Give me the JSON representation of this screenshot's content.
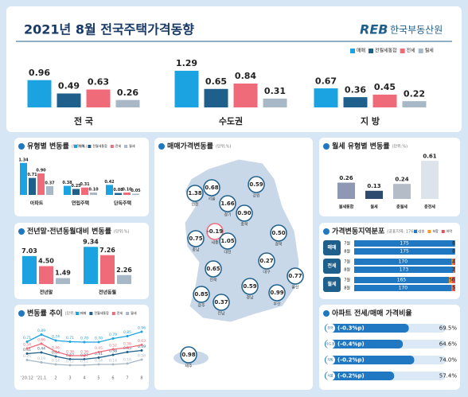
{
  "header": {
    "title": "2021년 8월 전국주택가격동향",
    "logo": "REB",
    "org": "한국부동산원"
  },
  "chart_data": [
    {
      "type": "bar",
      "ylim": [
        0,
        1.4
      ],
      "categories": [
        "전 국",
        "수도권",
        "지 방"
      ],
      "series": [
        {
          "name": "매매",
          "color": "#1aa3e0",
          "values": [
            0.96,
            1.29,
            0.67
          ],
          "value_labels": [
            "0.96",
            "1.29",
            "0.67"
          ]
        },
        {
          "name": "전월세통합",
          "color": "#1f5f8b",
          "values": [
            0.49,
            0.65,
            0.36
          ],
          "value_labels": [
            "0.49",
            "0.65",
            "0.36"
          ]
        },
        {
          "name": "전세",
          "color": "#f06b7a",
          "values": [
            0.63,
            0.84,
            0.45
          ],
          "value_labels": [
            "0.63",
            "0.84",
            "0.45"
          ]
        },
        {
          "name": "월세",
          "color": "#a9b8c6",
          "values": [
            0.26,
            0.31,
            0.22
          ],
          "value_labels": [
            "0.26",
            "0.31",
            "0.22"
          ]
        }
      ]
    },
    {
      "type": "bar",
      "title": "유형별 변동률",
      "unit": "(단위:%)",
      "ylim": [
        0,
        1.5
      ],
      "categories": [
        "아파트",
        "연립주택",
        "단독주택"
      ],
      "series": [
        {
          "name": "매매",
          "color": "#1aa3e0",
          "values": [
            1.34,
            0.38,
            0.42
          ],
          "value_labels": [
            "1.34",
            "0.38",
            "0.42"
          ]
        },
        {
          "name": "전월세통합",
          "color": "#1f5f8b",
          "values": [
            0.71,
            0.25,
            0.08
          ],
          "value_labels": [
            "0.71",
            "0.25",
            "0.08"
          ]
        },
        {
          "name": "전세",
          "color": "#f06b7a",
          "values": [
            0.9,
            0.31,
            0.1
          ],
          "value_labels": [
            "0.90",
            "0.31",
            "0.10"
          ]
        },
        {
          "name": "월세",
          "color": "#a9b8c6",
          "values": [
            0.37,
            0.1,
            0.05
          ],
          "value_labels": [
            "0.37",
            "0.10",
            "0.05"
          ]
        }
      ]
    },
    {
      "type": "bar",
      "title": "전년말·전년동월대비 변동률",
      "unit": "(단위:%)",
      "ylim": [
        0,
        10
      ],
      "categories": [
        "전년말",
        "전년동월"
      ],
      "series": [
        {
          "color": "#1aa3e0",
          "values": [
            7.03,
            9.34
          ],
          "value_labels": [
            "7.03",
            "9.34"
          ]
        },
        {
          "color": "#f06b7a",
          "values": [
            4.5,
            7.26
          ],
          "value_labels": [
            "4.50",
            "7.26"
          ]
        },
        {
          "color": "#a9b8c6",
          "values": [
            1.49,
            2.26
          ],
          "value_labels": [
            "1.49",
            "2.26"
          ]
        }
      ]
    },
    {
      "type": "line",
      "title": "변동률 추이",
      "unit": "(단위:%)",
      "ylim": [
        0,
        1.1
      ],
      "categories": [
        "'20.12",
        "'21.1",
        "2",
        "3",
        "4",
        "5",
        "6",
        "7",
        "8"
      ],
      "series": [
        {
          "name": "매매",
          "color": "#1aa3e0",
          "values": [
            0.71,
            0.89,
            0.74,
            0.71,
            0.7,
            0.7,
            0.79,
            0.85,
            0.96
          ],
          "value_labels": [
            "0.71",
            "0.89",
            "0.74",
            "0.71",
            "0.70",
            "0.70",
            "0.79",
            "0.85",
            "0.96"
          ]
        },
        {
          "name": "전월세통합",
          "color": "#1f5f8b",
          "values": [
            0.41,
            0.44,
            0.34,
            0.27,
            0.27,
            0.31,
            0.38,
            0.45,
            0.49
          ],
          "value_labels": [
            "0.41",
            "0.44",
            "0.34",
            "0.27",
            "0.27",
            "0.31",
            "0.38",
            "0.45",
            "0.49"
          ]
        },
        {
          "name": "전세",
          "color": "#f06b7a",
          "values": [
            0.54,
            0.66,
            0.46,
            0.36,
            0.36,
            0.45,
            0.52,
            0.56,
            0.63
          ],
          "value_labels": [
            "0.54",
            "0.66",
            "0.46",
            "0.36",
            "0.36",
            "0.45",
            "0.52",
            "0.56",
            "0.63"
          ]
        },
        {
          "name": "월세",
          "color": "#a9b8c6",
          "values": [
            0.25,
            0.19,
            0.14,
            0.12,
            0.12,
            0.14,
            0.14,
            0.16,
            0.26
          ],
          "value_labels": [
            "0.25",
            "0.19",
            "0.14",
            "0.12",
            "0.12",
            "0.14",
            "0.14",
            "0.16",
            "0.26"
          ]
        }
      ]
    },
    {
      "type": "map",
      "title": "매매가격변동률",
      "unit": "(단위:%)",
      "categories": [
        "인천",
        "서울",
        "경기",
        "강원",
        "충북",
        "세종",
        "충남",
        "대전",
        "경북",
        "전북",
        "대구",
        "울산",
        "광주",
        "경남",
        "부산",
        "전남",
        "제주"
      ],
      "values": [
        1.38,
        0.68,
        1.66,
        0.59,
        0.9,
        -0.19,
        0.75,
        1.05,
        0.5,
        0.65,
        0.27,
        0.77,
        0.85,
        0.59,
        0.99,
        0.37,
        0.98
      ],
      "value_labels": [
        "1.38",
        "0.68",
        "1.66",
        "0.59",
        "0.90",
        "-0.19",
        "0.75",
        "1.05",
        "0.50",
        "0.65",
        "0.27",
        "0.77",
        "0.85",
        "0.59",
        "0.99",
        "0.37",
        "0.98"
      ]
    },
    {
      "type": "bar",
      "title": "월세 유형별 변동률",
      "unit": "(단위:%)",
      "ylim": [
        0,
        0.7
      ],
      "categories": [
        "월세통합",
        "월세",
        "준월세",
        "준전세"
      ],
      "colors": [
        "#8e97b3",
        "#2c4b6e",
        "#b3bcc7",
        "#dde3ea"
      ],
      "series": [
        {
          "values": [
            0.26,
            0.13,
            0.24,
            0.61
          ],
          "value_labels": [
            "0.26",
            "0.13",
            "0.24",
            "0.61"
          ]
        }
      ]
    },
    {
      "type": "stacked-hbar",
      "title": "가격변동지역분포",
      "subtitle": "(공표지역: 176개)",
      "xlim": [
        0,
        176
      ],
      "groups": [
        "매매",
        "전세",
        "월세"
      ],
      "categories": [
        "7월",
        "8월",
        "7월",
        "8월",
        "7월",
        "8월"
      ],
      "series": [
        {
          "name": "상승",
          "color": "#1f78c1",
          "values": [
            175,
            175,
            170,
            173,
            165,
            170
          ]
        },
        {
          "name": "보합",
          "color": "#f39a2b",
          "values": [
            0,
            0,
            2,
            1,
            5,
            1
          ]
        },
        {
          "name": "하락",
          "color": "#e8505b",
          "values": [
            1,
            1,
            4,
            2,
            6,
            5
          ]
        }
      ]
    },
    {
      "type": "hbar",
      "title": "아파트 전세/매매 가격비율",
      "xlim": [
        0,
        100
      ],
      "categories": [
        "전국",
        "수도권",
        "지방",
        "서울"
      ],
      "change_labels": [
        "(-0.3%p)",
        "(-0.4%p)",
        "(-0.2%p)",
        "(-0.2%p)"
      ],
      "color": "#1f78c1",
      "values": [
        69.5,
        64.6,
        74.0,
        57.4
      ],
      "value_labels": [
        "69.5%",
        "64.6%",
        "74.0%",
        "57.4%"
      ]
    }
  ]
}
